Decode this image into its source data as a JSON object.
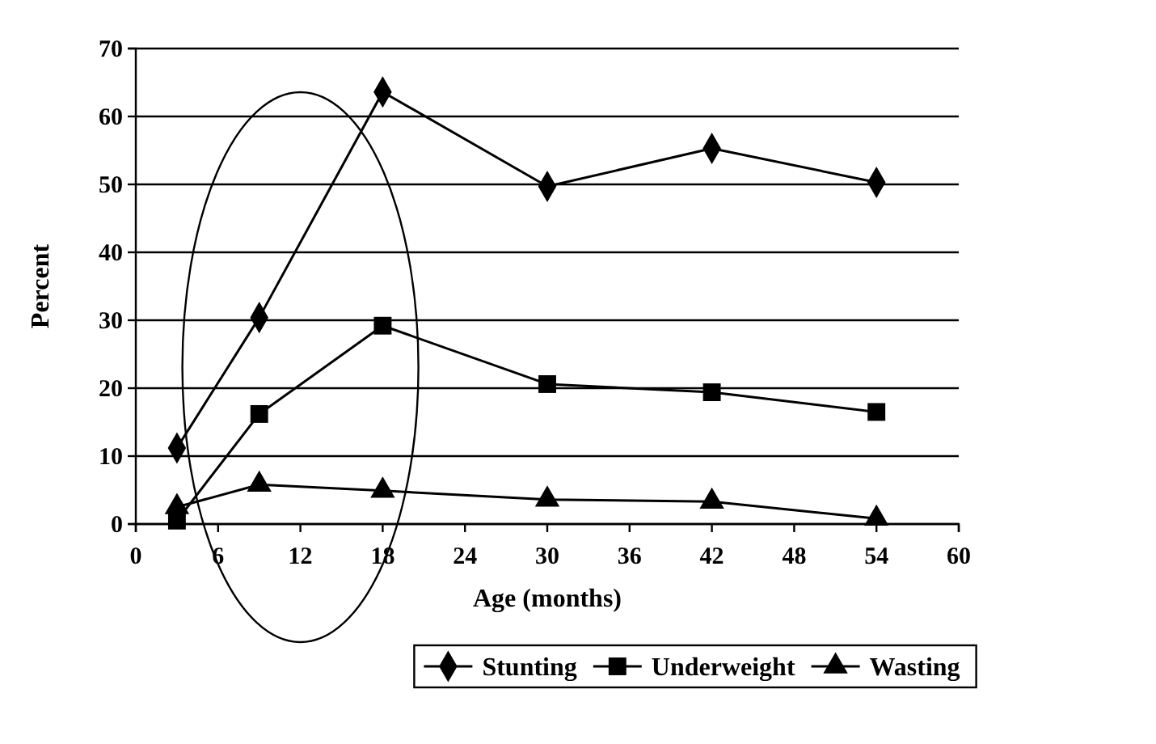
{
  "chart_data": {
    "type": "line",
    "xlabel": "Age (months)",
    "ylabel": "Percent",
    "x": [
      3,
      9,
      18,
      30,
      42,
      54
    ],
    "xlim": [
      0,
      60
    ],
    "xticks": [
      0,
      6,
      12,
      18,
      24,
      30,
      36,
      42,
      48,
      54,
      60
    ],
    "ylim": [
      0,
      70
    ],
    "yticks": [
      0,
      10,
      20,
      30,
      40,
      50,
      60,
      70
    ],
    "grid": "y",
    "legend": "bottom",
    "series": [
      {
        "name": "Stunting",
        "color": "#000000",
        "marker": "diamond",
        "values": [
          11.2,
          30.4,
          63.6,
          49.7,
          55.3,
          50.3
        ]
      },
      {
        "name": "Underweight",
        "color": "#000000",
        "marker": "square",
        "values": [
          0.5,
          16.2,
          29.2,
          20.6,
          19.4,
          16.5
        ]
      },
      {
        "name": "Wasting",
        "color": "#000000",
        "marker": "triangle",
        "values": [
          2.5,
          5.8,
          4.9,
          3.6,
          3.3,
          0.8
        ]
      }
    ]
  }
}
